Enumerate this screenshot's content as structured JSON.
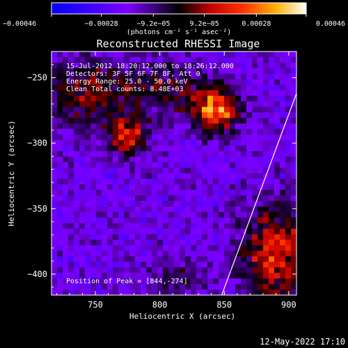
{
  "chart_data": {
    "type": "heatmap",
    "title": "Reconstructed RHESSI Image",
    "xlabel": "Heliocentric X (arcsec)",
    "ylabel": "Heliocentric Y (arcsec)",
    "xlim": [
      716,
      906
    ],
    "ylim": [
      -416,
      -230
    ],
    "xticks": [
      750,
      800,
      850,
      900
    ],
    "xtick_labels": [
      "750",
      "800",
      "850",
      "900"
    ],
    "yticks": [
      -250,
      -300,
      -350,
      -400
    ],
    "ytick_labels": [
      "−250",
      "−300",
      "−350",
      "−400"
    ],
    "colorbar": {
      "min": -0.00046,
      "max": 0.00046,
      "tick_values": [
        -0.00046,
        -0.00028,
        -9.2e-05,
        9.2e-05,
        0.00028,
        0.00046
      ],
      "tick_labels": [
        "−0.00046",
        "−0.00028",
        "−9.2e−05",
        "9.2e−05",
        "0.00028",
        "0.00046"
      ],
      "unit_label": "(photons cm⁻² s⁻¹ asec⁻²)"
    },
    "info_lines": [
      "15-Jul-2012 18:20:12.000 to 18:26:12.000",
      "Detectors: 3F 5F 6F 7F 8F, Att 0",
      "Energy Range: 25.0 - 50.0 keV",
      "Clean    Total counts: 8.48E+03"
    ],
    "peak_label": "Position of Peak = [844,-274]",
    "peak_position": [
      844,
      -274
    ],
    "sources": [
      {
        "x": 844,
        "y": -274,
        "amp": 0.00046,
        "sx": 12,
        "sy": 12
      },
      {
        "x": 775,
        "y": -294,
        "amp": 0.00035,
        "sx": 10,
        "sy": 10
      },
      {
        "x": 742,
        "y": -263,
        "amp": 0.00022,
        "sx": 22,
        "sy": 18
      },
      {
        "x": 800,
        "y": -258,
        "amp": 0.00018,
        "sx": 25,
        "sy": 14
      },
      {
        "x": 890,
        "y": -385,
        "amp": 0.00036,
        "sx": 18,
        "sy": 26
      },
      {
        "x": 815,
        "y": -400,
        "amp": 0.00012,
        "sx": 18,
        "sy": 10
      }
    ],
    "limb_points": [
      [
        906,
        -262
      ],
      [
        848,
        -416
      ]
    ]
  },
  "timestamp": "12-May-2022 17:10"
}
